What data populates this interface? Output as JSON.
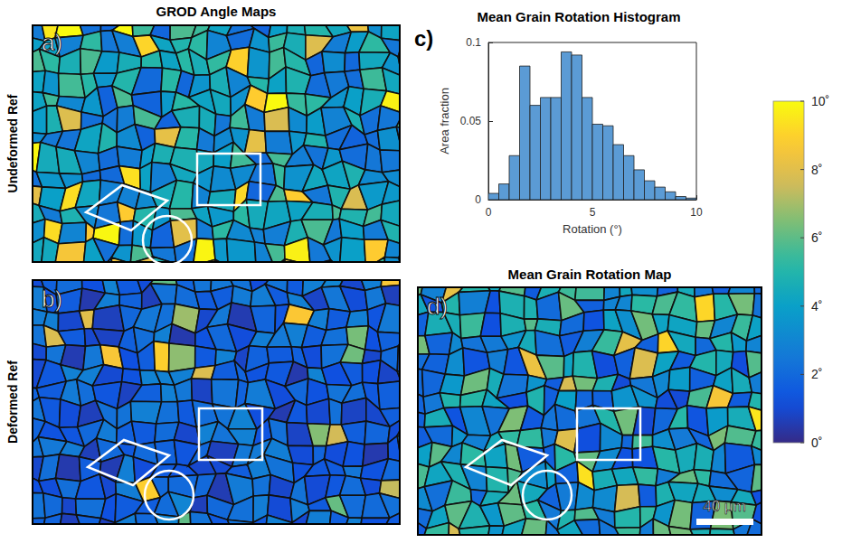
{
  "chart_data": {
    "type": "histogram",
    "title": "Mean Grain Rotation Histogram",
    "panel_label": "c)",
    "bins": [
      0,
      0.5,
      1,
      1.5,
      2,
      2.5,
      3,
      3.5,
      4,
      4.5,
      5,
      5.5,
      6,
      6.5,
      7,
      7.5,
      8,
      8.5,
      9,
      9.5,
      10
    ],
    "values": [
      0.004,
      0.01,
      0.028,
      0.085,
      0.06,
      0.065,
      0.065,
      0.094,
      0.092,
      0.065,
      0.048,
      0.047,
      0.035,
      0.028,
      0.019,
      0.012,
      0.008,
      0.005,
      0.002,
      0.001
    ],
    "color": "#5b9bd5",
    "xlabel": "Rotation (°)",
    "ylabel": "Area fraction",
    "xlim": [
      0,
      10
    ],
    "xticks": [
      0,
      5,
      10
    ],
    "ylim": [
      0,
      0.1
    ],
    "yticks": [
      0,
      0.05,
      0.1
    ],
    "grid": false
  },
  "maps": [
    {
      "label": "a)",
      "title": "GROD Angle Maps",
      "row": "Undeformed Ref"
    },
    {
      "label": "b)",
      "row": "Deformed Ref"
    },
    {
      "label": "d)",
      "title": "Mean Grain Rotation Map",
      "scale_bar": "40 μm"
    }
  ],
  "colorbar": {
    "range": [
      0,
      10
    ],
    "ticks": [
      {
        "value": 0,
        "label": "0˚"
      },
      {
        "value": 2,
        "label": "2˚"
      },
      {
        "value": 4,
        "label": "4˚"
      },
      {
        "value": 6,
        "label": "6˚"
      },
      {
        "value": 8,
        "label": "8˚"
      },
      {
        "value": 10,
        "label": "10˚"
      }
    ]
  }
}
